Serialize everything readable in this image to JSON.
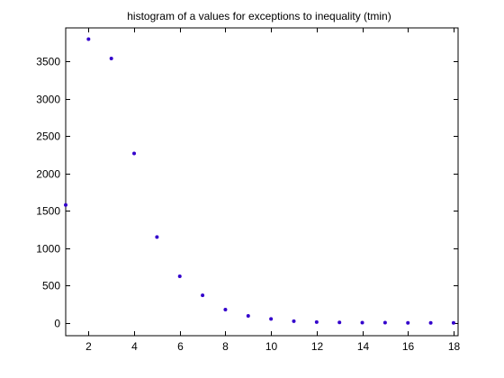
{
  "chart_data": {
    "type": "scatter",
    "title": "histogram of a values for exceptions to inequality (tmin)",
    "xlabel": "",
    "ylabel": "",
    "xlim": [
      1,
      18.2
    ],
    "ylim": [
      -170,
      3950
    ],
    "x_ticks": [
      2,
      4,
      6,
      8,
      10,
      12,
      14,
      16,
      18
    ],
    "y_ticks": [
      0,
      500,
      1000,
      1500,
      2000,
      2500,
      3000,
      3500
    ],
    "grid": false,
    "marker_color": "#3300cc",
    "points": [
      {
        "x": 1,
        "y": 1580
      },
      {
        "x": 2,
        "y": 3800
      },
      {
        "x": 3,
        "y": 3540
      },
      {
        "x": 4,
        "y": 2270
      },
      {
        "x": 5,
        "y": 1150
      },
      {
        "x": 6,
        "y": 625
      },
      {
        "x": 7,
        "y": 370
      },
      {
        "x": 8,
        "y": 180
      },
      {
        "x": 9,
        "y": 95
      },
      {
        "x": 10,
        "y": 55
      },
      {
        "x": 11,
        "y": 25
      },
      {
        "x": 12,
        "y": 12
      },
      {
        "x": 13,
        "y": 8
      },
      {
        "x": 14,
        "y": 4
      },
      {
        "x": 15,
        "y": 5
      },
      {
        "x": 16,
        "y": 2
      },
      {
        "x": 17,
        "y": 1
      },
      {
        "x": 18,
        "y": 1
      }
    ]
  }
}
